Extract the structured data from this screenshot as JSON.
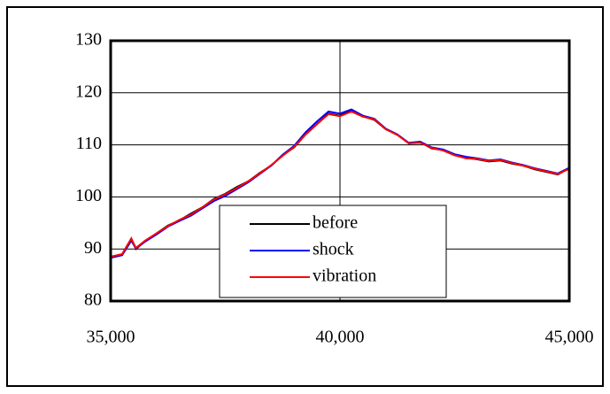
{
  "chart_data": {
    "type": "line",
    "x": [
      35000,
      35250,
      35450,
      35550,
      35750,
      36000,
      36250,
      36500,
      36750,
      37000,
      37250,
      37500,
      37750,
      38000,
      38250,
      38500,
      38750,
      39000,
      39250,
      39500,
      39750,
      40000,
      40250,
      40500,
      40750,
      41000,
      41250,
      41500,
      41750,
      42000,
      42250,
      42500,
      42750,
      43000,
      43250,
      43500,
      43750,
      44000,
      44250,
      44500,
      44750,
      45000
    ],
    "series": [
      {
        "name": "before",
        "color": "#000000",
        "values": [
          88.5,
          89,
          92,
          90,
          91.5,
          93,
          94.5,
          95.5,
          96.8,
          98,
          99.6,
          100.6,
          101.9,
          103,
          104.6,
          106,
          108,
          109.5,
          112,
          114,
          116,
          115.6,
          116.6,
          115.5,
          114.8,
          113,
          112,
          110.3,
          110.5,
          109.3,
          109,
          108,
          107.5,
          107.2,
          106.8,
          107,
          106.4,
          106,
          105.3,
          104.8,
          104.3,
          105.5
        ]
      },
      {
        "name": "shock",
        "color": "#0000ff",
        "values": [
          88.3,
          88.8,
          91.6,
          90.1,
          91.4,
          92.8,
          94.3,
          95.4,
          96.4,
          97.8,
          99.2,
          100.2,
          101.5,
          102.8,
          104.4,
          106,
          108.1,
          109.8,
          112.4,
          114.5,
          116.4,
          116,
          116.8,
          115.6,
          115,
          113.1,
          112,
          110.4,
          110.6,
          109.5,
          109.1,
          108.2,
          107.7,
          107.4,
          107,
          107.2,
          106.6,
          106.1,
          105.5,
          105,
          104.5,
          105.6
        ]
      },
      {
        "name": "vibration",
        "color": "#ff0000",
        "values": [
          88.5,
          89,
          92,
          90.2,
          91.6,
          93,
          94.4,
          95.6,
          96.6,
          98,
          99.5,
          100.5,
          101.7,
          103,
          104.5,
          106.1,
          107.9,
          109.6,
          112,
          114,
          115.9,
          115.5,
          116.4,
          115.4,
          114.9,
          113,
          111.9,
          110.3,
          110.4,
          109.4,
          108.9,
          108,
          107.4,
          107.3,
          106.9,
          107.1,
          106.5,
          106,
          105.4,
          104.9,
          104.4,
          105.4
        ]
      }
    ],
    "xlim": [
      35000,
      45000
    ],
    "xticks": [
      {
        "value": 35000,
        "label": "35,000"
      },
      {
        "value": 40000,
        "label": "40,000"
      },
      {
        "value": 45000,
        "label": "45,000"
      }
    ],
    "ylim": [
      80,
      130
    ],
    "yticks": [
      80,
      90,
      100,
      110,
      120,
      130
    ],
    "grid": true
  }
}
